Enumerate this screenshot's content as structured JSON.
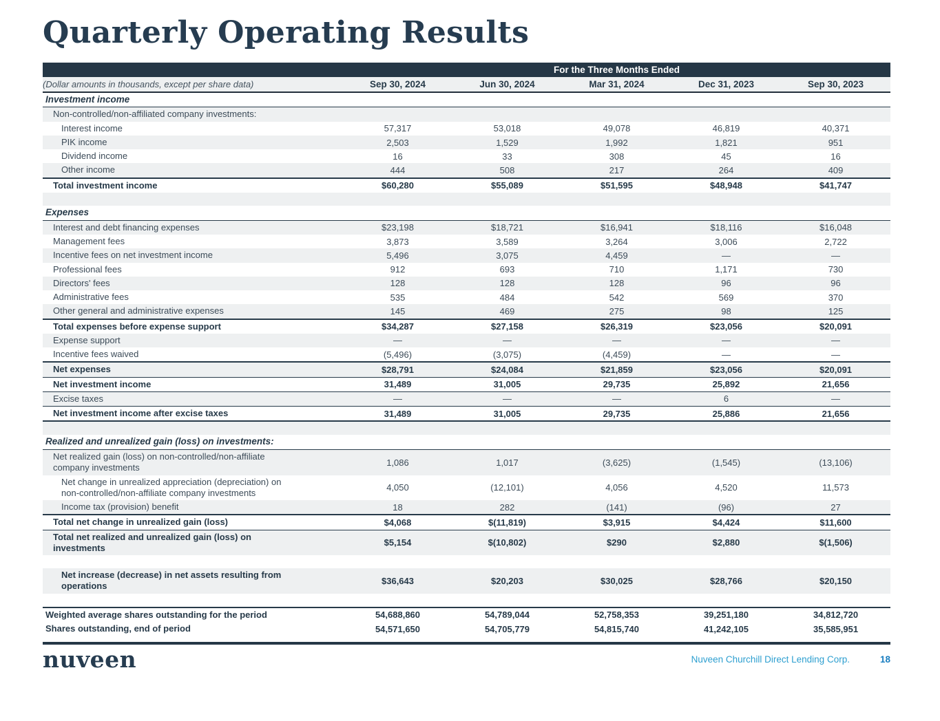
{
  "page": {
    "title": "Quarterly Operating Results",
    "footer": {
      "logo": "nuveen",
      "company": "Nuveen Churchill Direct Lending Corp.",
      "page_number": "18"
    }
  },
  "colors": {
    "header_navy": "#253746",
    "title_navy": "#263c50",
    "row_shade": "#eef0f1",
    "body_text": "#3c4b58",
    "footer_company_blue": "#2d9fd0",
    "page_number_blue": "#1a7ec0"
  },
  "table": {
    "banner": "For the Three Months Ended",
    "label_header": "(Dollar amounts in thousands, except per share data)",
    "columns": [
      "Sep 30, 2024",
      "Jun 30, 2024",
      "Mar 31, 2024",
      "Dec 31, 2023",
      "Sep 30, 2023"
    ],
    "rows": [
      {
        "label": "Investment income",
        "style": "sec",
        "values": [
          "",
          "",
          "",
          "",
          ""
        ]
      },
      {
        "label": "Non-controlled/non-affiliated company investments:",
        "indent": 1,
        "shaded": true,
        "values": [
          "",
          "",
          "",
          "",
          ""
        ]
      },
      {
        "label": "Interest income",
        "indent": 2,
        "values": [
          "57,317",
          "53,018",
          "49,078",
          "46,819",
          "40,371"
        ]
      },
      {
        "label": "PIK income",
        "indent": 2,
        "shaded": true,
        "values": [
          "2,503",
          "1,529",
          "1,992",
          "1,821",
          "951"
        ]
      },
      {
        "label": "Dividend income",
        "indent": 2,
        "values": [
          "16",
          "33",
          "308",
          "45",
          "16"
        ]
      },
      {
        "label": "Other income",
        "indent": 2,
        "shaded": true,
        "values": [
          "444",
          "508",
          "217",
          "264",
          "409"
        ]
      },
      {
        "label": "Total investment income",
        "style": "total",
        "indent": 1,
        "rule_top": "thick",
        "values": [
          "$60,280",
          "$55,089",
          "$51,595",
          "$48,948",
          "$41,747"
        ]
      },
      {
        "spacer": true,
        "shaded": true
      },
      {
        "label": "Expenses",
        "style": "sec",
        "values": [
          "",
          "",
          "",
          "",
          ""
        ]
      },
      {
        "label": "Interest and debt financing expenses",
        "indent": 1,
        "shaded": true,
        "values": [
          "$23,198",
          "$18,721",
          "$16,941",
          "$18,116",
          "$16,048"
        ]
      },
      {
        "label": "Management fees",
        "indent": 1,
        "values": [
          "3,873",
          "3,589",
          "3,264",
          "3,006",
          "2,722"
        ]
      },
      {
        "label": "Incentive fees on net investment income",
        "indent": 1,
        "shaded": true,
        "values": [
          "5,496",
          "3,075",
          "4,459",
          "—",
          "—"
        ]
      },
      {
        "label": "Professional fees",
        "indent": 1,
        "values": [
          "912",
          "693",
          "710",
          "1,171",
          "730"
        ]
      },
      {
        "label": "Directors' fees",
        "indent": 1,
        "shaded": true,
        "values": [
          "128",
          "128",
          "128",
          "96",
          "96"
        ]
      },
      {
        "label": "Administrative fees",
        "indent": 1,
        "values": [
          "535",
          "484",
          "542",
          "569",
          "370"
        ]
      },
      {
        "label": "Other general and administrative expenses",
        "indent": 1,
        "shaded": true,
        "values": [
          "145",
          "469",
          "275",
          "98",
          "125"
        ]
      },
      {
        "label": "Total expenses before expense support",
        "style": "total",
        "indent": 1,
        "rule_top": "thick",
        "values": [
          "$34,287",
          "$27,158",
          "$26,319",
          "$23,056",
          "$20,091"
        ]
      },
      {
        "label": "Expense support",
        "indent": 1,
        "shaded": true,
        "values": [
          "—",
          "—",
          "—",
          "—",
          "—"
        ]
      },
      {
        "label": "Incentive fees waived",
        "indent": 1,
        "values": [
          "(5,496)",
          "(3,075)",
          "(4,459)",
          "—",
          "—"
        ]
      },
      {
        "label": "Net expenses",
        "style": "total",
        "indent": 1,
        "shaded": true,
        "rule_top": "thick",
        "values": [
          "$28,791",
          "$24,084",
          "$21,859",
          "$23,056",
          "$20,091"
        ]
      },
      {
        "label": "Net investment income",
        "style": "total",
        "indent": 1,
        "rule_top": "thin",
        "values": [
          "31,489",
          "31,005",
          "29,735",
          "25,892",
          "21,656"
        ]
      },
      {
        "label": "Excise taxes",
        "indent": 1,
        "shaded": true,
        "rule_top": "thin",
        "values": [
          "—",
          "—",
          "—",
          "6",
          "—"
        ]
      },
      {
        "label": "Net investment income after excise taxes",
        "style": "total",
        "indent": 1,
        "rule_top": "thin",
        "rule_bottom": "thick",
        "values": [
          "31,489",
          "31,005",
          "29,735",
          "25,886",
          "21,656"
        ]
      },
      {
        "spacer": true,
        "shaded": true
      },
      {
        "label": "Realized and unrealized gain (loss) on investments:",
        "style": "sec",
        "values": [
          "",
          "",
          "",
          "",
          ""
        ]
      },
      {
        "label": "Net realized gain (loss) on non-controlled/non-affiliate company investments",
        "indent": 1,
        "shaded": true,
        "wrap": true,
        "values": [
          "1,086",
          "1,017",
          "(3,625)",
          "(1,545)",
          "(13,106)"
        ]
      },
      {
        "label": "Net change in unrealized appreciation (depreciation) on non-controlled/non-affiliate company investments",
        "indent": 2,
        "wrap": true,
        "values": [
          "4,050",
          "(12,101)",
          "4,056",
          "4,520",
          "11,573"
        ]
      },
      {
        "label": "Income tax (provision) benefit",
        "indent": 2,
        "shaded": true,
        "values": [
          "18",
          "282",
          "(141)",
          "(96)",
          "27"
        ]
      },
      {
        "label": "Total net change in unrealized gain (loss)",
        "style": "total",
        "indent": 1,
        "rule_top": "thick",
        "values": [
          "$4,068",
          "$(11,819)",
          "$3,915",
          "$4,424",
          "$11,600"
        ]
      },
      {
        "label": "Total net realized and unrealized gain (loss) on investments",
        "style": "total",
        "indent": 1,
        "shaded": true,
        "rule_top": "thin",
        "wrap": true,
        "values": [
          "$5,154",
          "$(10,802)",
          "$290",
          "$2,880",
          "$(1,506)"
        ]
      },
      {
        "spacer": true
      },
      {
        "label": "Net increase (decrease) in net assets resulting from operations",
        "style": "total",
        "indent": 2,
        "shaded": true,
        "wrap": true,
        "values": [
          "$36,643",
          "$20,203",
          "$30,025",
          "$28,766",
          "$20,150"
        ]
      },
      {
        "spacer": true
      },
      {
        "label": "Weighted average shares outstanding for the period",
        "style": "total",
        "indent": 0,
        "rule_top": "thick",
        "values": [
          "54,688,860",
          "54,789,044",
          "52,758,353",
          "39,251,180",
          "34,812,720"
        ]
      },
      {
        "label": "Shares outstanding, end of period",
        "style": "total",
        "indent": 0,
        "values": [
          "54,571,650",
          "54,705,779",
          "54,815,740",
          "41,242,105",
          "35,585,951"
        ]
      }
    ]
  }
}
